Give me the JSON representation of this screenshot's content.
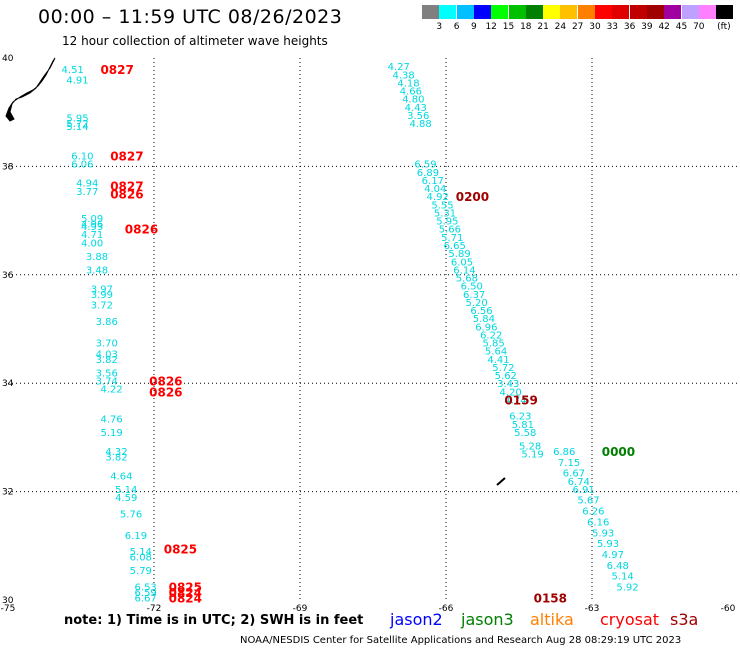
{
  "title": "00:00 – 11:59 UTC 08/26/2023",
  "subtitle": "12 hour collection of altimeter wave heights",
  "legend": {
    "colors": [
      "#808080",
      "#00ffff",
      "#00c0ff",
      "#0000ff",
      "#00ff00",
      "#00c000",
      "#008000",
      "#ffff00",
      "#ffc000",
      "#ff8000",
      "#ff0000",
      "#e00000",
      "#c00000",
      "#a00000",
      "#a000a0",
      "#c0a0ff",
      "#ff80ff",
      "#000000"
    ],
    "labels": [
      "3",
      "6",
      "9",
      "12",
      "15",
      "18",
      "21",
      "24",
      "27",
      "30",
      "33",
      "36",
      "39",
      "42",
      "45",
      "70"
    ],
    "unit": "(ft)"
  },
  "axes": {
    "lat_ticks": [
      "40",
      "38",
      "36",
      "34",
      "32",
      "30"
    ],
    "lon_ticks": [
      "-75",
      "-72",
      "-69",
      "-66",
      "-63",
      "-60"
    ]
  },
  "chart_data": {
    "type": "scatter",
    "xlim": [
      -75,
      -60
    ],
    "ylim": [
      30,
      40
    ],
    "xlabel": "",
    "ylabel": "",
    "grid": true,
    "swh_points": [
      {
        "lon": -73.9,
        "lat": 39.8,
        "value": "4.51"
      },
      {
        "lon": -73.8,
        "lat": 39.6,
        "value": "4.91"
      },
      {
        "lon": -73.8,
        "lat": 38.9,
        "value": "5.95"
      },
      {
        "lon": -73.8,
        "lat": 38.8,
        "value": "5.72"
      },
      {
        "lon": -73.8,
        "lat": 38.75,
        "value": "5.14"
      },
      {
        "lon": -73.7,
        "lat": 38.2,
        "value": "6.10"
      },
      {
        "lon": -73.7,
        "lat": 38.05,
        "value": "6.06"
      },
      {
        "lon": -73.6,
        "lat": 37.7,
        "value": "4.94"
      },
      {
        "lon": -73.6,
        "lat": 37.55,
        "value": "3.77"
      },
      {
        "lon": -73.5,
        "lat": 37.05,
        "value": "5.09"
      },
      {
        "lon": -73.5,
        "lat": 36.95,
        "value": "4.96"
      },
      {
        "lon": -73.5,
        "lat": 36.9,
        "value": "4.93"
      },
      {
        "lon": -73.5,
        "lat": 36.75,
        "value": "4.71"
      },
      {
        "lon": -73.5,
        "lat": 36.6,
        "value": "4.00"
      },
      {
        "lon": -73.4,
        "lat": 36.35,
        "value": "3.88"
      },
      {
        "lon": -73.4,
        "lat": 36.1,
        "value": "3.48"
      },
      {
        "lon": -73.3,
        "lat": 35.75,
        "value": "3.97"
      },
      {
        "lon": -73.3,
        "lat": 35.65,
        "value": "3.99"
      },
      {
        "lon": -73.3,
        "lat": 35.45,
        "value": "3.72"
      },
      {
        "lon": -73.2,
        "lat": 35.15,
        "value": "3.86"
      },
      {
        "lon": -73.2,
        "lat": 34.75,
        "value": "3.70"
      },
      {
        "lon": -73.2,
        "lat": 34.55,
        "value": "4.03"
      },
      {
        "lon": -73.2,
        "lat": 34.45,
        "value": "3.82"
      },
      {
        "lon": -73.2,
        "lat": 34.2,
        "value": "3.56"
      },
      {
        "lon": -73.2,
        "lat": 34.05,
        "value": "3.74"
      },
      {
        "lon": -73.1,
        "lat": 33.9,
        "value": "4.22"
      },
      {
        "lon": -73.1,
        "lat": 33.35,
        "value": "4.76"
      },
      {
        "lon": -73.1,
        "lat": 33.1,
        "value": "5.19"
      },
      {
        "lon": -73.0,
        "lat": 32.75,
        "value": "4.32"
      },
      {
        "lon": -73.0,
        "lat": 32.65,
        "value": "3.82"
      },
      {
        "lon": -72.9,
        "lat": 32.3,
        "value": "4.64"
      },
      {
        "lon": -72.8,
        "lat": 32.05,
        "value": "5.14"
      },
      {
        "lon": -72.8,
        "lat": 31.9,
        "value": "4.59"
      },
      {
        "lon": -72.7,
        "lat": 31.6,
        "value": "5.76"
      },
      {
        "lon": -72.6,
        "lat": 31.2,
        "value": "6.19"
      },
      {
        "lon": -72.5,
        "lat": 30.9,
        "value": "5.14"
      },
      {
        "lon": -72.5,
        "lat": 30.8,
        "value": "6.08"
      },
      {
        "lon": -72.5,
        "lat": 30.55,
        "value": "5.79"
      },
      {
        "lon": -72.4,
        "lat": 30.25,
        "value": "6.53"
      },
      {
        "lon": -72.4,
        "lat": 30.15,
        "value": "6.59"
      },
      {
        "lon": -72.4,
        "lat": 30.05,
        "value": "6.67"
      },
      {
        "lon": -67.2,
        "lat": 39.85,
        "value": "4.27"
      },
      {
        "lon": -67.1,
        "lat": 39.7,
        "value": "4.38"
      },
      {
        "lon": -67.0,
        "lat": 39.55,
        "value": "4.18"
      },
      {
        "lon": -66.95,
        "lat": 39.4,
        "value": "4.66"
      },
      {
        "lon": -66.9,
        "lat": 39.25,
        "value": "4.80"
      },
      {
        "lon": -66.85,
        "lat": 39.1,
        "value": "4.43"
      },
      {
        "lon": -66.8,
        "lat": 38.95,
        "value": "3.56"
      },
      {
        "lon": -66.75,
        "lat": 38.8,
        "value": "4.88"
      },
      {
        "lon": -66.65,
        "lat": 38.05,
        "value": "6.59"
      },
      {
        "lon": -66.6,
        "lat": 37.9,
        "value": "6.89"
      },
      {
        "lon": -66.5,
        "lat": 37.75,
        "value": "6.17"
      },
      {
        "lon": -66.45,
        "lat": 37.6,
        "value": "4.04"
      },
      {
        "lon": -66.4,
        "lat": 37.45,
        "value": "4.92"
      },
      {
        "lon": -66.3,
        "lat": 37.3,
        "value": "5.55"
      },
      {
        "lon": -66.25,
        "lat": 37.15,
        "value": "5.31"
      },
      {
        "lon": -66.2,
        "lat": 37.0,
        "value": "5.95"
      },
      {
        "lon": -66.15,
        "lat": 36.85,
        "value": "5.66"
      },
      {
        "lon": -66.1,
        "lat": 36.7,
        "value": "5.71"
      },
      {
        "lon": -66.05,
        "lat": 36.55,
        "value": "6.65"
      },
      {
        "lon": -65.95,
        "lat": 36.4,
        "value": "5.89"
      },
      {
        "lon": -65.9,
        "lat": 36.25,
        "value": "6.05"
      },
      {
        "lon": -65.85,
        "lat": 36.1,
        "value": "6.14"
      },
      {
        "lon": -65.8,
        "lat": 35.95,
        "value": "5.68"
      },
      {
        "lon": -65.7,
        "lat": 35.8,
        "value": "6.50"
      },
      {
        "lon": -65.65,
        "lat": 35.65,
        "value": "6.37"
      },
      {
        "lon": -65.6,
        "lat": 35.5,
        "value": "5.20"
      },
      {
        "lon": -65.5,
        "lat": 35.35,
        "value": "6.56"
      },
      {
        "lon": -65.45,
        "lat": 35.2,
        "value": "5.84"
      },
      {
        "lon": -65.4,
        "lat": 35.05,
        "value": "6.96"
      },
      {
        "lon": -65.3,
        "lat": 34.9,
        "value": "6.22"
      },
      {
        "lon": -65.25,
        "lat": 34.75,
        "value": "5.85"
      },
      {
        "lon": -65.2,
        "lat": 34.6,
        "value": "5.64"
      },
      {
        "lon": -65.15,
        "lat": 34.45,
        "value": "4.41"
      },
      {
        "lon": -65.05,
        "lat": 34.3,
        "value": "5.72"
      },
      {
        "lon": -65.0,
        "lat": 34.15,
        "value": "5.62"
      },
      {
        "lon": -64.95,
        "lat": 34.0,
        "value": "3.43"
      },
      {
        "lon": -64.9,
        "lat": 33.85,
        "value": "4.20"
      },
      {
        "lon": -64.8,
        "lat": 33.7,
        "value": "4.74"
      },
      {
        "lon": -64.7,
        "lat": 33.4,
        "value": "6.23"
      },
      {
        "lon": -64.65,
        "lat": 33.25,
        "value": "5.81"
      },
      {
        "lon": -64.6,
        "lat": 33.1,
        "value": "5.58"
      },
      {
        "lon": -64.5,
        "lat": 32.85,
        "value": "5.28"
      },
      {
        "lon": -64.45,
        "lat": 32.7,
        "value": "5.19"
      },
      {
        "lon": -63.8,
        "lat": 32.75,
        "value": "6.86"
      },
      {
        "lon": -63.7,
        "lat": 32.55,
        "value": "7.15"
      },
      {
        "lon": -63.6,
        "lat": 32.35,
        "value": "6.67"
      },
      {
        "lon": -63.5,
        "lat": 32.2,
        "value": "6.74"
      },
      {
        "lon": -63.4,
        "lat": 32.05,
        "value": "6.91"
      },
      {
        "lon": -63.3,
        "lat": 31.85,
        "value": "5.67"
      },
      {
        "lon": -63.2,
        "lat": 31.65,
        "value": "6.26"
      },
      {
        "lon": -63.1,
        "lat": 31.45,
        "value": "6.16"
      },
      {
        "lon": -63.0,
        "lat": 31.25,
        "value": "5.93"
      },
      {
        "lon": -62.9,
        "lat": 31.05,
        "value": "5.93"
      },
      {
        "lon": -62.8,
        "lat": 30.85,
        "value": "4.97"
      },
      {
        "lon": -62.7,
        "lat": 30.65,
        "value": "6.48"
      },
      {
        "lon": -62.6,
        "lat": 30.45,
        "value": "5.14"
      },
      {
        "lon": -62.5,
        "lat": 30.25,
        "value": "5.92"
      }
    ],
    "time_labels": [
      {
        "lon": -73.1,
        "lat": 39.8,
        "value": "0827",
        "color": "#ff0000"
      },
      {
        "lon": -72.9,
        "lat": 38.2,
        "value": "0827",
        "color": "#ff0000"
      },
      {
        "lon": -72.9,
        "lat": 37.65,
        "value": "0827",
        "color": "#ff0000"
      },
      {
        "lon": -72.9,
        "lat": 37.5,
        "value": "0826",
        "color": "#ff0000"
      },
      {
        "lon": -72.6,
        "lat": 36.85,
        "value": "0826",
        "color": "#ff0000"
      },
      {
        "lon": -72.1,
        "lat": 34.05,
        "value": "0826",
        "color": "#ff0000"
      },
      {
        "lon": -72.1,
        "lat": 33.85,
        "value": "0826",
        "color": "#ff0000"
      },
      {
        "lon": -71.8,
        "lat": 30.95,
        "value": "0825",
        "color": "#ff0000"
      },
      {
        "lon": -71.7,
        "lat": 30.25,
        "value": "0825",
        "color": "#ff0000"
      },
      {
        "lon": -71.7,
        "lat": 30.15,
        "value": "0824",
        "color": "#ff0000"
      },
      {
        "lon": -71.7,
        "lat": 30.05,
        "value": "0824",
        "color": "#ff0000"
      },
      {
        "lon": -65.8,
        "lat": 37.45,
        "value": "0200",
        "color": "#a00000"
      },
      {
        "lon": -64.8,
        "lat": 33.7,
        "value": "0159",
        "color": "#a00000"
      },
      {
        "lon": -62.8,
        "lat": 32.75,
        "value": "0000",
        "color": "#008000"
      },
      {
        "lon": -64.2,
        "lat": 30.05,
        "value": "0158",
        "color": "#a00000"
      }
    ]
  },
  "footer": {
    "note": "note:  1) Time is in UTC;  2) SWH is in feet",
    "satellites": [
      {
        "name": "jason2",
        "color": "#0000ff"
      },
      {
        "name": "jason3",
        "color": "#008000"
      },
      {
        "name": "altika",
        "color": "#ff8000"
      },
      {
        "name": "cryosat",
        "color": "#ff0000"
      },
      {
        "name": "s3a",
        "color": "#a00000"
      }
    ],
    "credit": "NOAA/NESDIS Center for Satellite Applications and Research    Aug 28 08:29:19 UTC 2023"
  }
}
